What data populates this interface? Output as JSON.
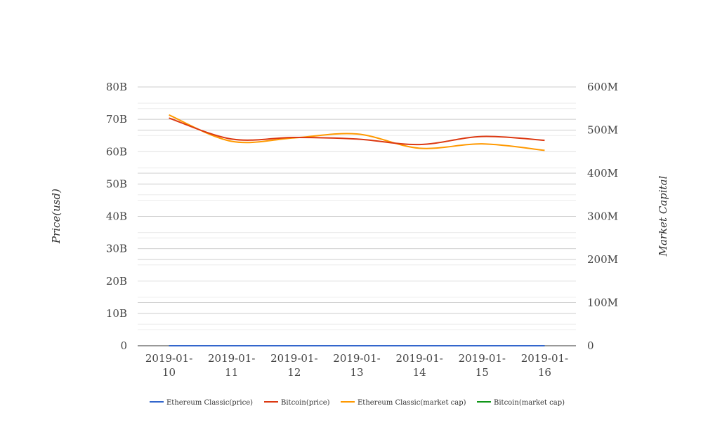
{
  "chart_data": {
    "type": "line",
    "title": "",
    "xlabel": "",
    "ylabel": "Price(usd)",
    "y2label": "Market Capital",
    "categories": [
      "2019-01-10",
      "2019-01-11",
      "2019-01-12",
      "2019-01-13",
      "2019-01-14",
      "2019-01-15",
      "2019-01-16"
    ],
    "x_tick_lines": [
      [
        "2019-01-",
        "10"
      ],
      [
        "2019-01-",
        "11"
      ],
      [
        "2019-01-",
        "12"
      ],
      [
        "2019-01-",
        "13"
      ],
      [
        "2019-01-",
        "14"
      ],
      [
        "2019-01-",
        "15"
      ],
      [
        "2019-01-",
        "16"
      ]
    ],
    "y_left": {
      "ylim": [
        0,
        80000000000
      ],
      "ticks": [
        0,
        10000000000,
        20000000000,
        30000000000,
        40000000000,
        50000000000,
        60000000000,
        70000000000,
        80000000000
      ],
      "tick_labels": [
        "0",
        "10B",
        "20B",
        "30B",
        "40B",
        "50B",
        "60B",
        "70B",
        "80B"
      ]
    },
    "y_right": {
      "ylim": [
        0,
        600000000
      ],
      "ticks": [
        0,
        100000000,
        200000000,
        300000000,
        400000000,
        500000000,
        600000000
      ],
      "tick_labels": [
        "0",
        "100M",
        "200M",
        "300M",
        "400M",
        "500M",
        "600M"
      ]
    },
    "grid": true,
    "legend_position": "bottom",
    "series": [
      {
        "name": "Ethereum Classic(price)",
        "axis": "left",
        "color": "#3366cc",
        "values": [
          5,
          5,
          5,
          5,
          5,
          5,
          5
        ]
      },
      {
        "name": "Bitcoin(price)",
        "axis": "left",
        "color": "#dc3912",
        "values": [
          70400000000,
          63900000000,
          64400000000,
          63900000000,
          62200000000,
          64700000000,
          63500000000
        ]
      },
      {
        "name": "Ethereum Classic(market cap)",
        "axis": "right",
        "color": "#ff9900",
        "values": [
          535000000,
          474000000,
          482000000,
          491000000,
          458000000,
          468000000,
          453000000
        ]
      },
      {
        "name": "Bitcoin(market cap)",
        "axis": "right",
        "color": "#109618",
        "values": [
          0,
          0,
          0,
          0,
          0,
          0,
          0
        ]
      }
    ]
  }
}
